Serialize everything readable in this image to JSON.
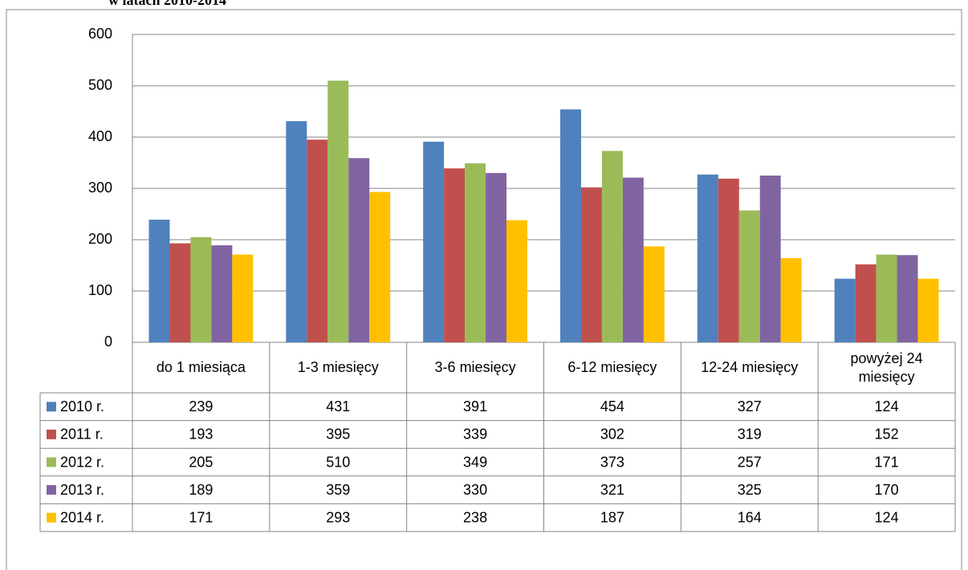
{
  "chart_data": {
    "type": "bar",
    "title": "w latach 2010-2014",
    "categories": [
      "do 1 miesiąca",
      "1-3 miesięcy",
      "3-6 miesięcy",
      "6-12 miesięcy",
      "12-24 miesięcy",
      "powyżej 24 miesięcy"
    ],
    "series": [
      {
        "name": "2010 r.",
        "color": "#4f81bd",
        "values": [
          239,
          431,
          391,
          454,
          327,
          124
        ]
      },
      {
        "name": "2011 r.",
        "color": "#c0504d",
        "values": [
          193,
          395,
          339,
          302,
          319,
          152
        ]
      },
      {
        "name": "2012 r.",
        "color": "#9bbb59",
        "values": [
          205,
          510,
          349,
          373,
          257,
          171
        ]
      },
      {
        "name": "2013 r.",
        "color": "#8064a2",
        "values": [
          189,
          359,
          330,
          321,
          325,
          170
        ]
      },
      {
        "name": "2014 r.",
        "color": "#ffc000",
        "values": [
          171,
          293,
          238,
          187,
          164,
          124
        ]
      }
    ],
    "ylim": [
      0,
      600
    ],
    "yticks": [
      0,
      100,
      200,
      300,
      400,
      500,
      600
    ],
    "grid": true
  }
}
